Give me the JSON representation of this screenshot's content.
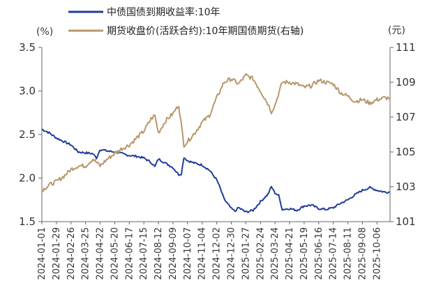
{
  "chart_data": {
    "type": "line",
    "legend": [
      {
        "name": "中债国债到期收益率:10年",
        "color": "#1f3d99",
        "axis": "left"
      },
      {
        "name": "期货收盘价(活跃合约):10年期国债期货(右轴)",
        "color": "#b8976a",
        "axis": "right"
      }
    ],
    "left_axis": {
      "unit": "(%)",
      "range": [
        1.5,
        3.5
      ],
      "ticks": [
        "1.5",
        "2.0",
        "2.5",
        "3.0",
        "3.5"
      ]
    },
    "right_axis": {
      "unit": "(元)",
      "range": [
        101,
        111
      ],
      "ticks": [
        "101",
        "103",
        "105",
        "107",
        "109",
        "111"
      ]
    },
    "x_range": [
      "2024-01-01",
      "2025-10-31"
    ],
    "x_ticks": [
      "2024-01-01",
      "2024-01-29",
      "2024-02-26",
      "2024-03-25",
      "2024-04-22",
      "2024-05-20",
      "2024-06-17",
      "2024-07-15",
      "2024-08-12",
      "2024-09-09",
      "2024-10-07",
      "2024-11-04",
      "2024-12-02",
      "2024-12-30",
      "2025-01-27",
      "2025-02-24",
      "2025-03-24",
      "2025-04-21",
      "2025-05-19",
      "2025-06-16",
      "2025-07-14",
      "2025-08-11",
      "2025-09-08",
      "2025-10-06"
    ],
    "series": [
      {
        "name": "中债国债到期收益率:10年",
        "axis": "left",
        "points": [
          [
            "2024-01-01",
            2.56
          ],
          [
            "2024-01-15",
            2.52
          ],
          [
            "2024-01-29",
            2.46
          ],
          [
            "2024-02-12",
            2.42
          ],
          [
            "2024-02-26",
            2.38
          ],
          [
            "2024-03-11",
            2.3
          ],
          [
            "2024-03-25",
            2.29
          ],
          [
            "2024-04-08",
            2.28
          ],
          [
            "2024-04-15",
            2.23
          ],
          [
            "2024-04-22",
            2.33
          ],
          [
            "2024-05-06",
            2.31
          ],
          [
            "2024-05-20",
            2.3
          ],
          [
            "2024-06-03",
            2.28
          ],
          [
            "2024-06-17",
            2.26
          ],
          [
            "2024-07-01",
            2.25
          ],
          [
            "2024-07-15",
            2.23
          ],
          [
            "2024-07-29",
            2.18
          ],
          [
            "2024-08-05",
            2.13
          ],
          [
            "2024-08-12",
            2.22
          ],
          [
            "2024-08-26",
            2.17
          ],
          [
            "2024-09-09",
            2.12
          ],
          [
            "2024-09-20",
            2.04
          ],
          [
            "2024-09-25",
            2.05
          ],
          [
            "2024-09-30",
            2.24
          ],
          [
            "2024-10-07",
            2.2
          ],
          [
            "2024-10-21",
            2.17
          ],
          [
            "2024-11-04",
            2.15
          ],
          [
            "2024-11-18",
            2.09
          ],
          [
            "2024-12-02",
            1.98
          ],
          [
            "2024-12-09",
            1.88
          ],
          [
            "2024-12-16",
            1.76
          ],
          [
            "2024-12-30",
            1.65
          ],
          [
            "2025-01-06",
            1.62
          ],
          [
            "2025-01-13",
            1.66
          ],
          [
            "2025-01-27",
            1.61
          ],
          [
            "2025-02-10",
            1.63
          ],
          [
            "2025-02-24",
            1.73
          ],
          [
            "2025-03-10",
            1.81
          ],
          [
            "2025-03-17",
            1.9
          ],
          [
            "2025-03-24",
            1.83
          ],
          [
            "2025-03-31",
            1.8
          ],
          [
            "2025-04-07",
            1.64
          ],
          [
            "2025-04-21",
            1.65
          ],
          [
            "2025-05-05",
            1.63
          ],
          [
            "2025-05-19",
            1.68
          ],
          [
            "2025-06-02",
            1.69
          ],
          [
            "2025-06-16",
            1.65
          ],
          [
            "2025-06-30",
            1.64
          ],
          [
            "2025-07-14",
            1.66
          ],
          [
            "2025-07-28",
            1.71
          ],
          [
            "2025-08-11",
            1.75
          ],
          [
            "2025-08-25",
            1.81
          ],
          [
            "2025-09-08",
            1.86
          ],
          [
            "2025-09-22",
            1.89
          ],
          [
            "2025-10-06",
            1.86
          ],
          [
            "2025-10-20",
            1.84
          ],
          [
            "2025-10-31",
            1.84
          ]
        ]
      },
      {
        "name": "期货收盘价(活跃合约):10年期国债期货(右轴)",
        "axis": "right",
        "points": [
          [
            "2024-01-01",
            102.8
          ],
          [
            "2024-01-15",
            103.1
          ],
          [
            "2024-01-29",
            103.3
          ],
          [
            "2024-02-12",
            103.6
          ],
          [
            "2024-02-26",
            104.0
          ],
          [
            "2024-03-11",
            104.2
          ],
          [
            "2024-03-25",
            104.2
          ],
          [
            "2024-04-08",
            104.6
          ],
          [
            "2024-04-22",
            104.2
          ],
          [
            "2024-05-06",
            104.6
          ],
          [
            "2024-05-20",
            104.9
          ],
          [
            "2024-06-03",
            105.2
          ],
          [
            "2024-06-17",
            105.4
          ],
          [
            "2024-07-01",
            105.8
          ],
          [
            "2024-07-15",
            106.2
          ],
          [
            "2024-07-29",
            106.9
          ],
          [
            "2024-08-05",
            107.1
          ],
          [
            "2024-08-12",
            106.1
          ],
          [
            "2024-08-26",
            106.8
          ],
          [
            "2024-09-09",
            107.2
          ],
          [
            "2024-09-20",
            107.7
          ],
          [
            "2024-09-30",
            105.4
          ],
          [
            "2024-10-07",
            105.6
          ],
          [
            "2024-10-21",
            106.1
          ],
          [
            "2024-11-04",
            106.7
          ],
          [
            "2024-11-18",
            107.1
          ],
          [
            "2024-12-02",
            108.1
          ],
          [
            "2024-12-16",
            109.0
          ],
          [
            "2024-12-30",
            109.2
          ],
          [
            "2025-01-13",
            108.9
          ],
          [
            "2025-01-27",
            109.4
          ],
          [
            "2025-02-10",
            109.2
          ],
          [
            "2025-02-24",
            108.5
          ],
          [
            "2025-03-10",
            107.8
          ],
          [
            "2025-03-17",
            107.3
          ],
          [
            "2025-03-24",
            107.7
          ],
          [
            "2025-04-07",
            109.0
          ],
          [
            "2025-04-21",
            109.0
          ],
          [
            "2025-05-05",
            108.9
          ],
          [
            "2025-05-19",
            108.7
          ],
          [
            "2025-06-02",
            108.8
          ],
          [
            "2025-06-16",
            109.1
          ],
          [
            "2025-06-30",
            109.0
          ],
          [
            "2025-07-14",
            108.9
          ],
          [
            "2025-07-28",
            108.4
          ],
          [
            "2025-08-11",
            108.2
          ],
          [
            "2025-08-25",
            107.9
          ],
          [
            "2025-09-08",
            108.0
          ],
          [
            "2025-09-22",
            107.8
          ],
          [
            "2025-10-06",
            108.0
          ],
          [
            "2025-10-20",
            108.1
          ],
          [
            "2025-10-31",
            108.1
          ]
        ]
      }
    ]
  }
}
